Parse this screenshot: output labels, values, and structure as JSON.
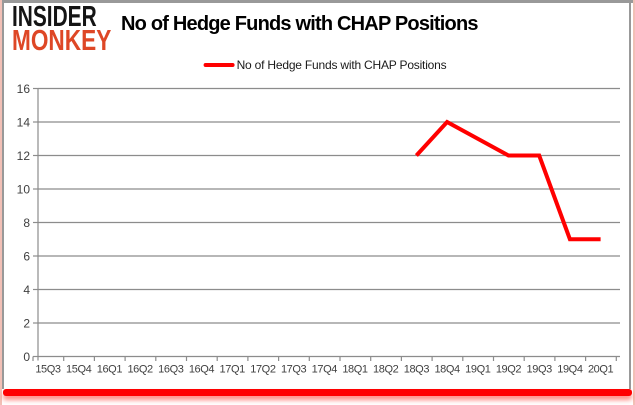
{
  "header": {
    "logo_line1": "INSIDER",
    "logo_line2": "MONKEY",
    "title": "No of Hedge Funds with CHAP Positions"
  },
  "legend": {
    "label": "No of Hedge Funds with CHAP Positions"
  },
  "chart_data": {
    "type": "line",
    "title": "No of Hedge Funds with CHAP Positions",
    "categories": [
      "15Q3",
      "15Q4",
      "16Q1",
      "16Q2",
      "16Q3",
      "16Q4",
      "17Q1",
      "17Q2",
      "17Q3",
      "17Q4",
      "18Q1",
      "18Q2",
      "18Q3",
      "18Q4",
      "19Q1",
      "19Q2",
      "19Q3",
      "19Q4",
      "20Q1"
    ],
    "series": [
      {
        "name": "No of Hedge Funds with CHAP Positions",
        "color": "#ff0000",
        "values": [
          null,
          null,
          null,
          null,
          null,
          null,
          null,
          null,
          null,
          null,
          null,
          null,
          12,
          14,
          13,
          12,
          12,
          7,
          7
        ]
      }
    ],
    "xlabel": "",
    "ylabel": "",
    "ylim": [
      0,
      16
    ],
    "yticks": [
      0,
      2,
      4,
      6,
      8,
      10,
      12,
      14,
      16
    ],
    "grid": true,
    "legend_position": "top"
  },
  "colors": {
    "series_line": "#ff0000",
    "gridline": "#8c8c8c",
    "axis": "#8c8c8c",
    "tick_label": "#3f3f3f",
    "logo_black": "#141414",
    "logo_red": "#de4726",
    "frame_gray": "#999999",
    "frame_pink": "#f2c0b6",
    "bottom_divider": "#ff0000"
  }
}
